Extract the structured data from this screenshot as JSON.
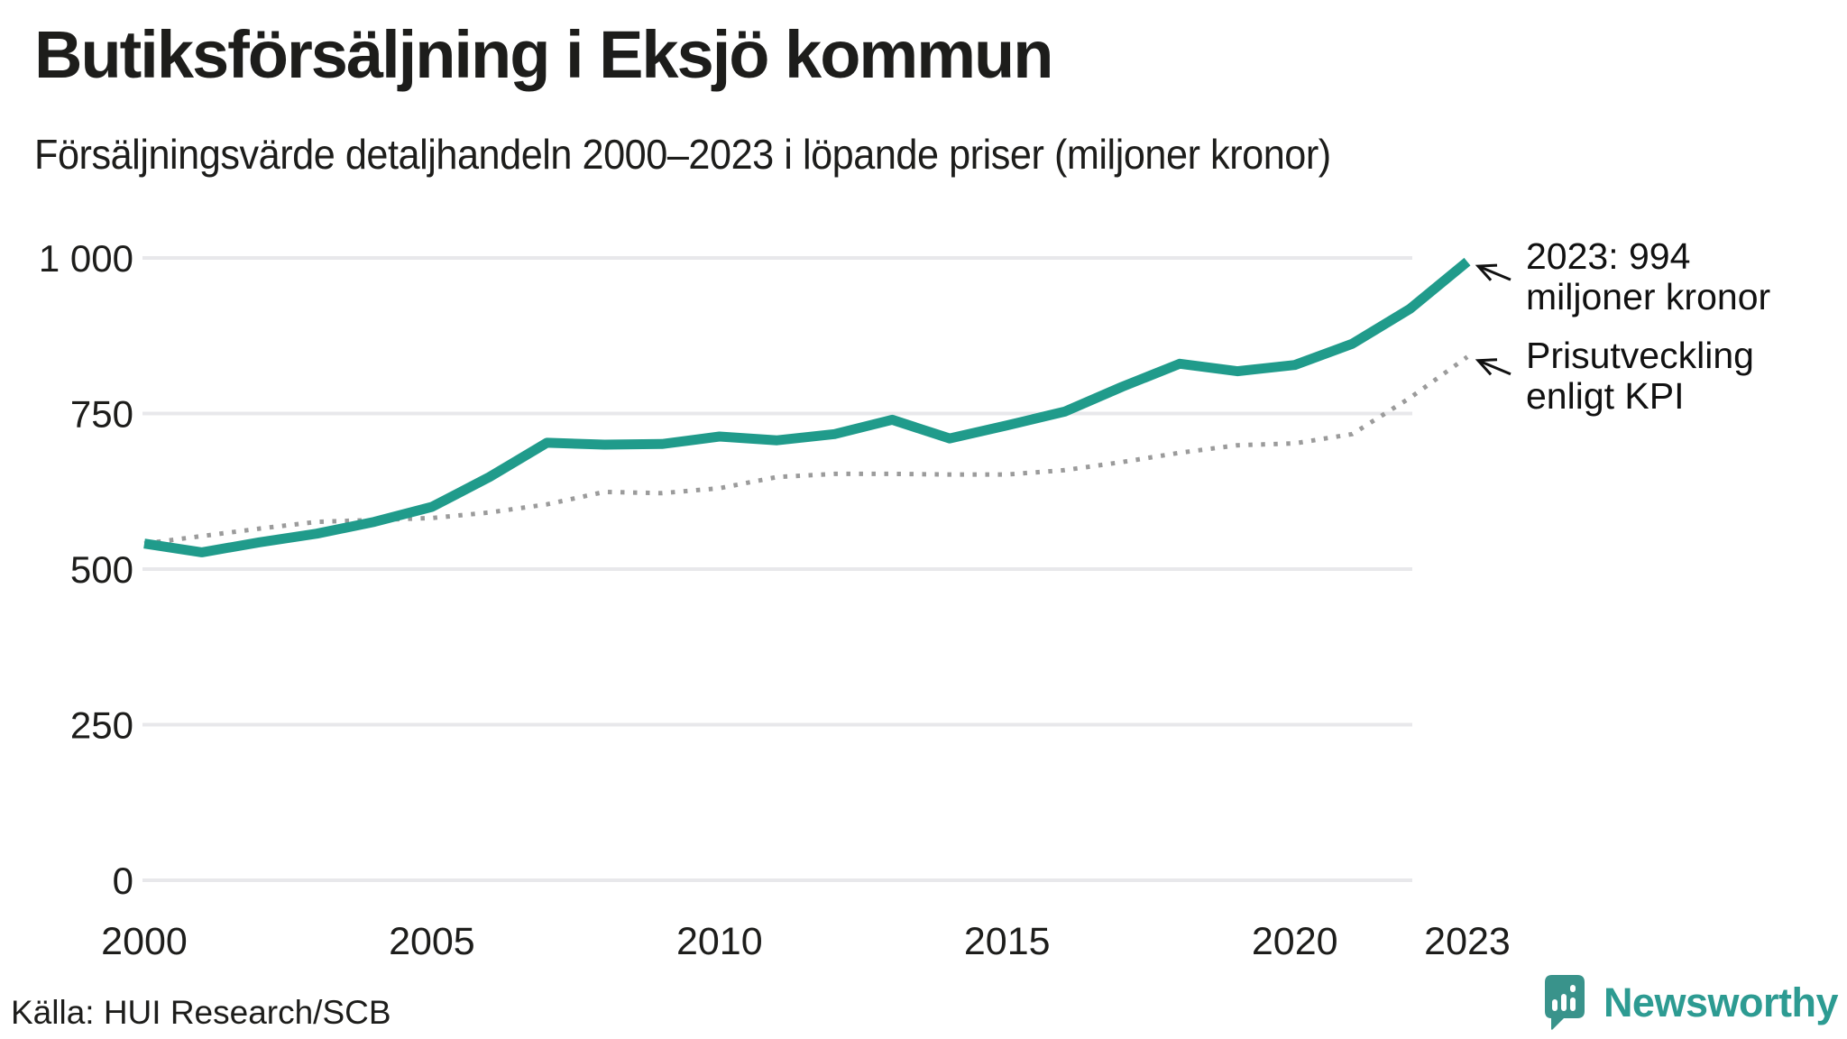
{
  "header": {
    "title": "Butiksförsäljning i Eksjö kommun",
    "subtitle": "Försäljningsvärde detaljhandeln 2000–2023 i löpande priser (miljoner kronor)"
  },
  "chart_data": {
    "type": "line",
    "title": "Butiksförsäljning i Eksjö kommun",
    "subtitle": "Försäljningsvärde detaljhandeln 2000–2023 i löpande priser (miljoner kronor)",
    "x": [
      2000,
      2001,
      2002,
      2003,
      2004,
      2005,
      2006,
      2007,
      2008,
      2009,
      2010,
      2011,
      2012,
      2013,
      2014,
      2015,
      2016,
      2017,
      2018,
      2019,
      2020,
      2021,
      2022,
      2023
    ],
    "series": [
      {
        "name": "Försäljningsvärde i löpande priser",
        "style": "solid",
        "color": "#209b8b",
        "values": [
          541,
          527,
          543,
          557,
          576,
          600,
          648,
          703,
          700,
          701,
          713,
          707,
          717,
          740,
          710,
          731,
          753,
          793,
          830,
          818,
          828,
          862,
          918,
          994
        ]
      },
      {
        "name": "Prisutveckling enligt KPI",
        "style": "dotted",
        "color": "#9b9b9b",
        "values": [
          541,
          553,
          565,
          576,
          579,
          582,
          591,
          604,
          624,
          622,
          630,
          648,
          653,
          653,
          652,
          652,
          659,
          672,
          687,
          699,
          702,
          717,
          775,
          841
        ]
      }
    ],
    "ylim": [
      0,
      1000
    ],
    "yticks": [
      {
        "value": 0,
        "label": "0"
      },
      {
        "value": 250,
        "label": "250"
      },
      {
        "value": 500,
        "label": "500"
      },
      {
        "value": 750,
        "label": "750"
      },
      {
        "value": 1000,
        "label": "1 000"
      }
    ],
    "xticks": [
      {
        "value": 2000,
        "label": "2000"
      },
      {
        "value": 2005,
        "label": "2005"
      },
      {
        "value": 2010,
        "label": "2010"
      },
      {
        "value": 2015,
        "label": "2015"
      },
      {
        "value": 2020,
        "label": "2020"
      },
      {
        "value": 2023,
        "label": "2023"
      }
    ],
    "grid": "horizontal",
    "grid_color": "#e8e8eb",
    "legend_position": "annotations-right",
    "annotations": [
      {
        "line1": "2023: 994",
        "line2": "miljoner kronor",
        "points_to": "sales 2023 endpoint"
      },
      {
        "line1": "Prisutveckling",
        "line2": "enligt KPI",
        "points_to": "kpi 2023 endpoint"
      }
    ]
  },
  "footer": {
    "source": "Källa: HUI Research/SCB",
    "brand": "Newsworthy",
    "brand_color": "#2d9b92",
    "brand_icon_color": "#39938b"
  }
}
